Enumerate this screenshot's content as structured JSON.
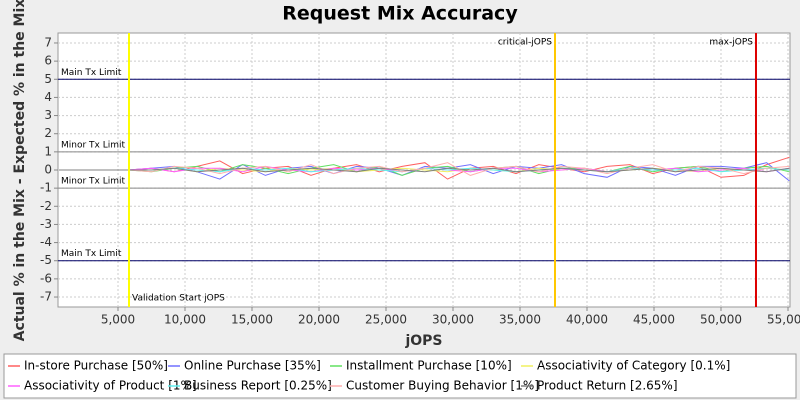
{
  "chart_data": {
    "type": "line",
    "title": "Request Mix Accuracy",
    "x_label": "jOPS",
    "y_label": "Actual % in the Mix - Expected % in the Mix",
    "xlim": [
      522,
      55150
    ],
    "ylim": [
      -7.55,
      7.55
    ],
    "grid": true,
    "xticks": [
      {
        "value": 5000,
        "label": "5,000"
      },
      {
        "value": 10000,
        "label": "10,000"
      },
      {
        "value": 15000,
        "label": "15,000"
      },
      {
        "value": 20000,
        "label": "20,000"
      },
      {
        "value": 25000,
        "label": "25,000"
      },
      {
        "value": 30000,
        "label": "30,000"
      },
      {
        "value": 35000,
        "label": "35,000"
      },
      {
        "value": 40000,
        "label": "40,000"
      },
      {
        "value": 45000,
        "label": "45,000"
      },
      {
        "value": 50000,
        "label": "50,000"
      },
      {
        "value": 55000,
        "label": "55,000"
      }
    ],
    "yticks": [
      7,
      6,
      5,
      4,
      3,
      2,
      1,
      0,
      -1,
      -2,
      -3,
      -4,
      -5,
      -6,
      -7
    ],
    "limits": [
      {
        "label": "Main Tx Limit",
        "value": 5,
        "color": "#000066"
      },
      {
        "label": "Minor Tx Limit",
        "value": 1,
        "color": "#888888"
      },
      {
        "label": "Minor Tx Limit",
        "value": -1,
        "color": "#888888"
      },
      {
        "label": "Main Tx Limit",
        "value": -5,
        "color": "#000066"
      }
    ],
    "markers": [
      {
        "label": "Validation Start jOPS",
        "value": 5821,
        "color": "#ffff00",
        "label_position": "bottom-right"
      },
      {
        "label": "critical-jOPS",
        "value": 37612,
        "color": "#ffc800",
        "label_position": "top-left"
      },
      {
        "label": "max-jOPS",
        "value": 52612,
        "color": "#dd0000",
        "label_position": "top-left"
      }
    ],
    "x": [
      600,
      5800,
      7500,
      9200,
      10900,
      12600,
      14300,
      16000,
      17700,
      19400,
      21100,
      22800,
      24500,
      26200,
      27900,
      29600,
      31300,
      33000,
      34700,
      36400,
      38100,
      39800,
      41500,
      43200,
      44900,
      46600,
      48300,
      50000,
      51700,
      53400,
      55100
    ],
    "series": [
      {
        "name": "In-store Purchase [50%]",
        "color": "#ff6060",
        "values": [
          0,
          0,
          0.1,
          -0.1,
          0.2,
          0.5,
          -0.2,
          0.1,
          0.2,
          -0.3,
          0.1,
          0.3,
          -0.1,
          0.2,
          0.4,
          -0.5,
          0.1,
          0.2,
          -0.2,
          0.3,
          0.1,
          -0.1,
          0.2,
          0.3,
          -0.2,
          0.1,
          0.2,
          -0.4,
          -0.3,
          0.3,
          0.7
        ]
      },
      {
        "name": "Online Purchase [35%]",
        "color": "#7070ff",
        "values": [
          0,
          0,
          0.1,
          0.2,
          -0.1,
          -0.5,
          0.3,
          -0.3,
          0.1,
          0.2,
          -0.2,
          0.2,
          0.1,
          -0.3,
          0.2,
          0.1,
          0.3,
          -0.2,
          0.2,
          0.1,
          0.3,
          -0.2,
          -0.4,
          0.2,
          0.1,
          -0.3,
          0.2,
          0.2,
          0.1,
          0.4,
          -0.6
        ]
      },
      {
        "name": "Installment Purchase [10%]",
        "color": "#60e060",
        "values": [
          0,
          0,
          -0.1,
          0.1,
          0.2,
          -0.1,
          0.3,
          0.1,
          -0.2,
          0.1,
          0.3,
          -0.1,
          0.2,
          -0.3,
          0.1,
          0.2,
          -0.1,
          0.1,
          0.2,
          -0.2,
          0.1,
          0.1,
          -0.1,
          0.2,
          -0.1,
          0.1,
          0.2,
          -0.1,
          0.1,
          0.2,
          -0.1
        ]
      },
      {
        "name": "Associativity of Category [0.1%]",
        "color": "#f0f060",
        "values": [
          0,
          0,
          0,
          0.1,
          -0.1,
          0.1,
          0,
          -0.1,
          0.1,
          0,
          0.1,
          -0.1,
          0,
          0.1,
          0,
          -0.1,
          0.1,
          0,
          -0.1,
          0.1,
          0,
          0.1,
          -0.1,
          0,
          0.1,
          0,
          -0.1,
          0.1,
          0,
          0.1,
          0
        ]
      },
      {
        "name": "Associativity of Product [1%]",
        "color": "#ff60ff",
        "values": [
          0,
          0,
          0.1,
          -0.1,
          0.1,
          0.1,
          -0.1,
          0.2,
          0,
          -0.1,
          0.1,
          0,
          0.1,
          -0.1,
          0.1,
          0,
          -0.1,
          0.1,
          0.1,
          -0.1,
          0,
          0.1,
          -0.1,
          0.1,
          0,
          0.1,
          -0.1,
          0,
          0.1,
          -0.1,
          0.1
        ]
      },
      {
        "name": "Business Report [0.25%]",
        "color": "#60f0f0",
        "values": [
          0,
          0,
          0,
          0.1,
          0,
          -0.1,
          0.1,
          0,
          0.1,
          -0.1,
          0,
          0.1,
          0,
          -0.1,
          0.1,
          0,
          0.1,
          0,
          -0.1,
          0,
          0.1,
          0,
          -0.1,
          0.1,
          0,
          0,
          0.1,
          -0.1,
          0,
          0.1,
          0
        ]
      },
      {
        "name": "Customer Buying Behavior [1%]",
        "color": "#ffafaf",
        "values": [
          0,
          0,
          -0.1,
          0.2,
          0.1,
          -0.2,
          0.1,
          0.2,
          -0.1,
          0.3,
          -0.2,
          0.1,
          0.2,
          -0.1,
          0.1,
          0.4,
          -0.3,
          0.1,
          0.2,
          -0.1,
          0.2,
          0.1,
          -0.2,
          0.1,
          0.3,
          -0.1,
          0.2,
          0.1,
          -0.2,
          0.1,
          0.2
        ]
      },
      {
        "name": "Product Return [2.65%]",
        "color": "#808080",
        "values": [
          0,
          0,
          0,
          0.1,
          -0.1,
          0,
          0.1,
          -0.1,
          0,
          0.1,
          0,
          -0.1,
          0.1,
          0,
          -0.1,
          0.1,
          0,
          0.1,
          -0.1,
          0,
          0.1,
          0,
          -0.1,
          0,
          0.1,
          -0.1,
          0,
          0.1,
          0,
          -0.1,
          0.1
        ]
      }
    ]
  }
}
